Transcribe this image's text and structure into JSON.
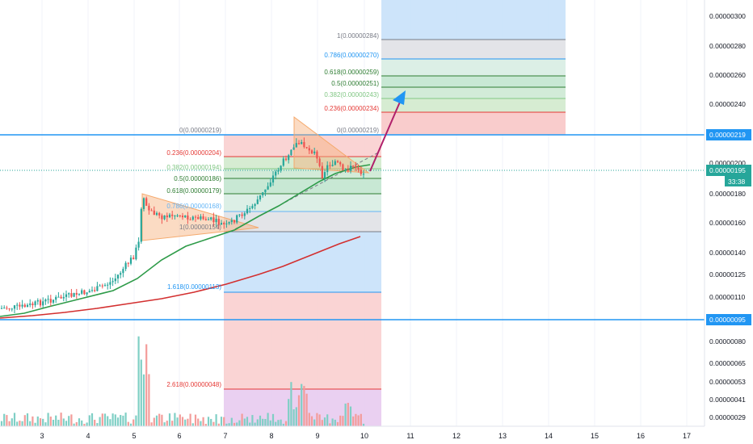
{
  "colors": {
    "up": "#26a69a",
    "down": "#ef5350",
    "ma_fast": "#2e9b49",
    "ma_slow": "#d32f2f",
    "hline": "#2196f3",
    "price_badge": "#26a69a",
    "arrow": "#b0206b",
    "arrow_head": "#2196f3",
    "triangle": "#f5a96c",
    "bg_blue": "#c5dff8",
    "bg_red": "#f9caca",
    "bg_purple": "#e7c8ee"
  },
  "price_axis": {
    "ticks": [
      "0.00000300",
      "0.00000280",
      "0.00000260",
      "0.00000240",
      "0.00000200",
      "0.00000180",
      "0.00000160",
      "0.00000140",
      "0.00000125",
      "0.00000110",
      "0.00000080",
      "0.00000065",
      "0.00000053",
      "0.00000041",
      "0.00000029"
    ],
    "badges": {
      "upper_line": "0.00000219",
      "current_price": "0.00000195",
      "countdown": "33:38",
      "lower_line": "0.00000095"
    }
  },
  "time_axis": {
    "labels": [
      "3",
      "4",
      "5",
      "6",
      "7",
      "8",
      "9",
      "10",
      "11",
      "12",
      "13",
      "14",
      "15",
      "16",
      "17"
    ]
  },
  "fib_left": {
    "levels": [
      {
        "label": "0(0.00000219)",
        "color": "#787b86"
      },
      {
        "label": "0.236(0.00000204)",
        "color": "#e53935"
      },
      {
        "label": "0.382(0.00000194)",
        "color": "#81c784"
      },
      {
        "label": "0.5(0.00000186)",
        "color": "#2e7d32"
      },
      {
        "label": "0.618(0.00000179)",
        "color": "#2e7d32"
      },
      {
        "label": "0.786(0.00000168)",
        "color": "#64b5f6"
      },
      {
        "label": "1(0.00000154)",
        "color": "#787b86"
      },
      {
        "label": "1.618(0.00000113)",
        "color": "#2196f3"
      },
      {
        "label": "2.618(0.00000048)",
        "color": "#e53935"
      }
    ]
  },
  "fib_right": {
    "levels": [
      {
        "label": "1(0.00000284)",
        "color": "#787b86"
      },
      {
        "label": "0.786(0.00000270)",
        "color": "#2196f3"
      },
      {
        "label": "0.618(0.00000259)",
        "color": "#2e7d32"
      },
      {
        "label": "0.5(0.00000251)",
        "color": "#2e7d32"
      },
      {
        "label": "0.382(0.00000243)",
        "color": "#81c784"
      },
      {
        "label": "0.236(0.00000234)",
        "color": "#e53935"
      },
      {
        "label": "0(0.00000219)",
        "color": "#787b86"
      }
    ]
  }
}
